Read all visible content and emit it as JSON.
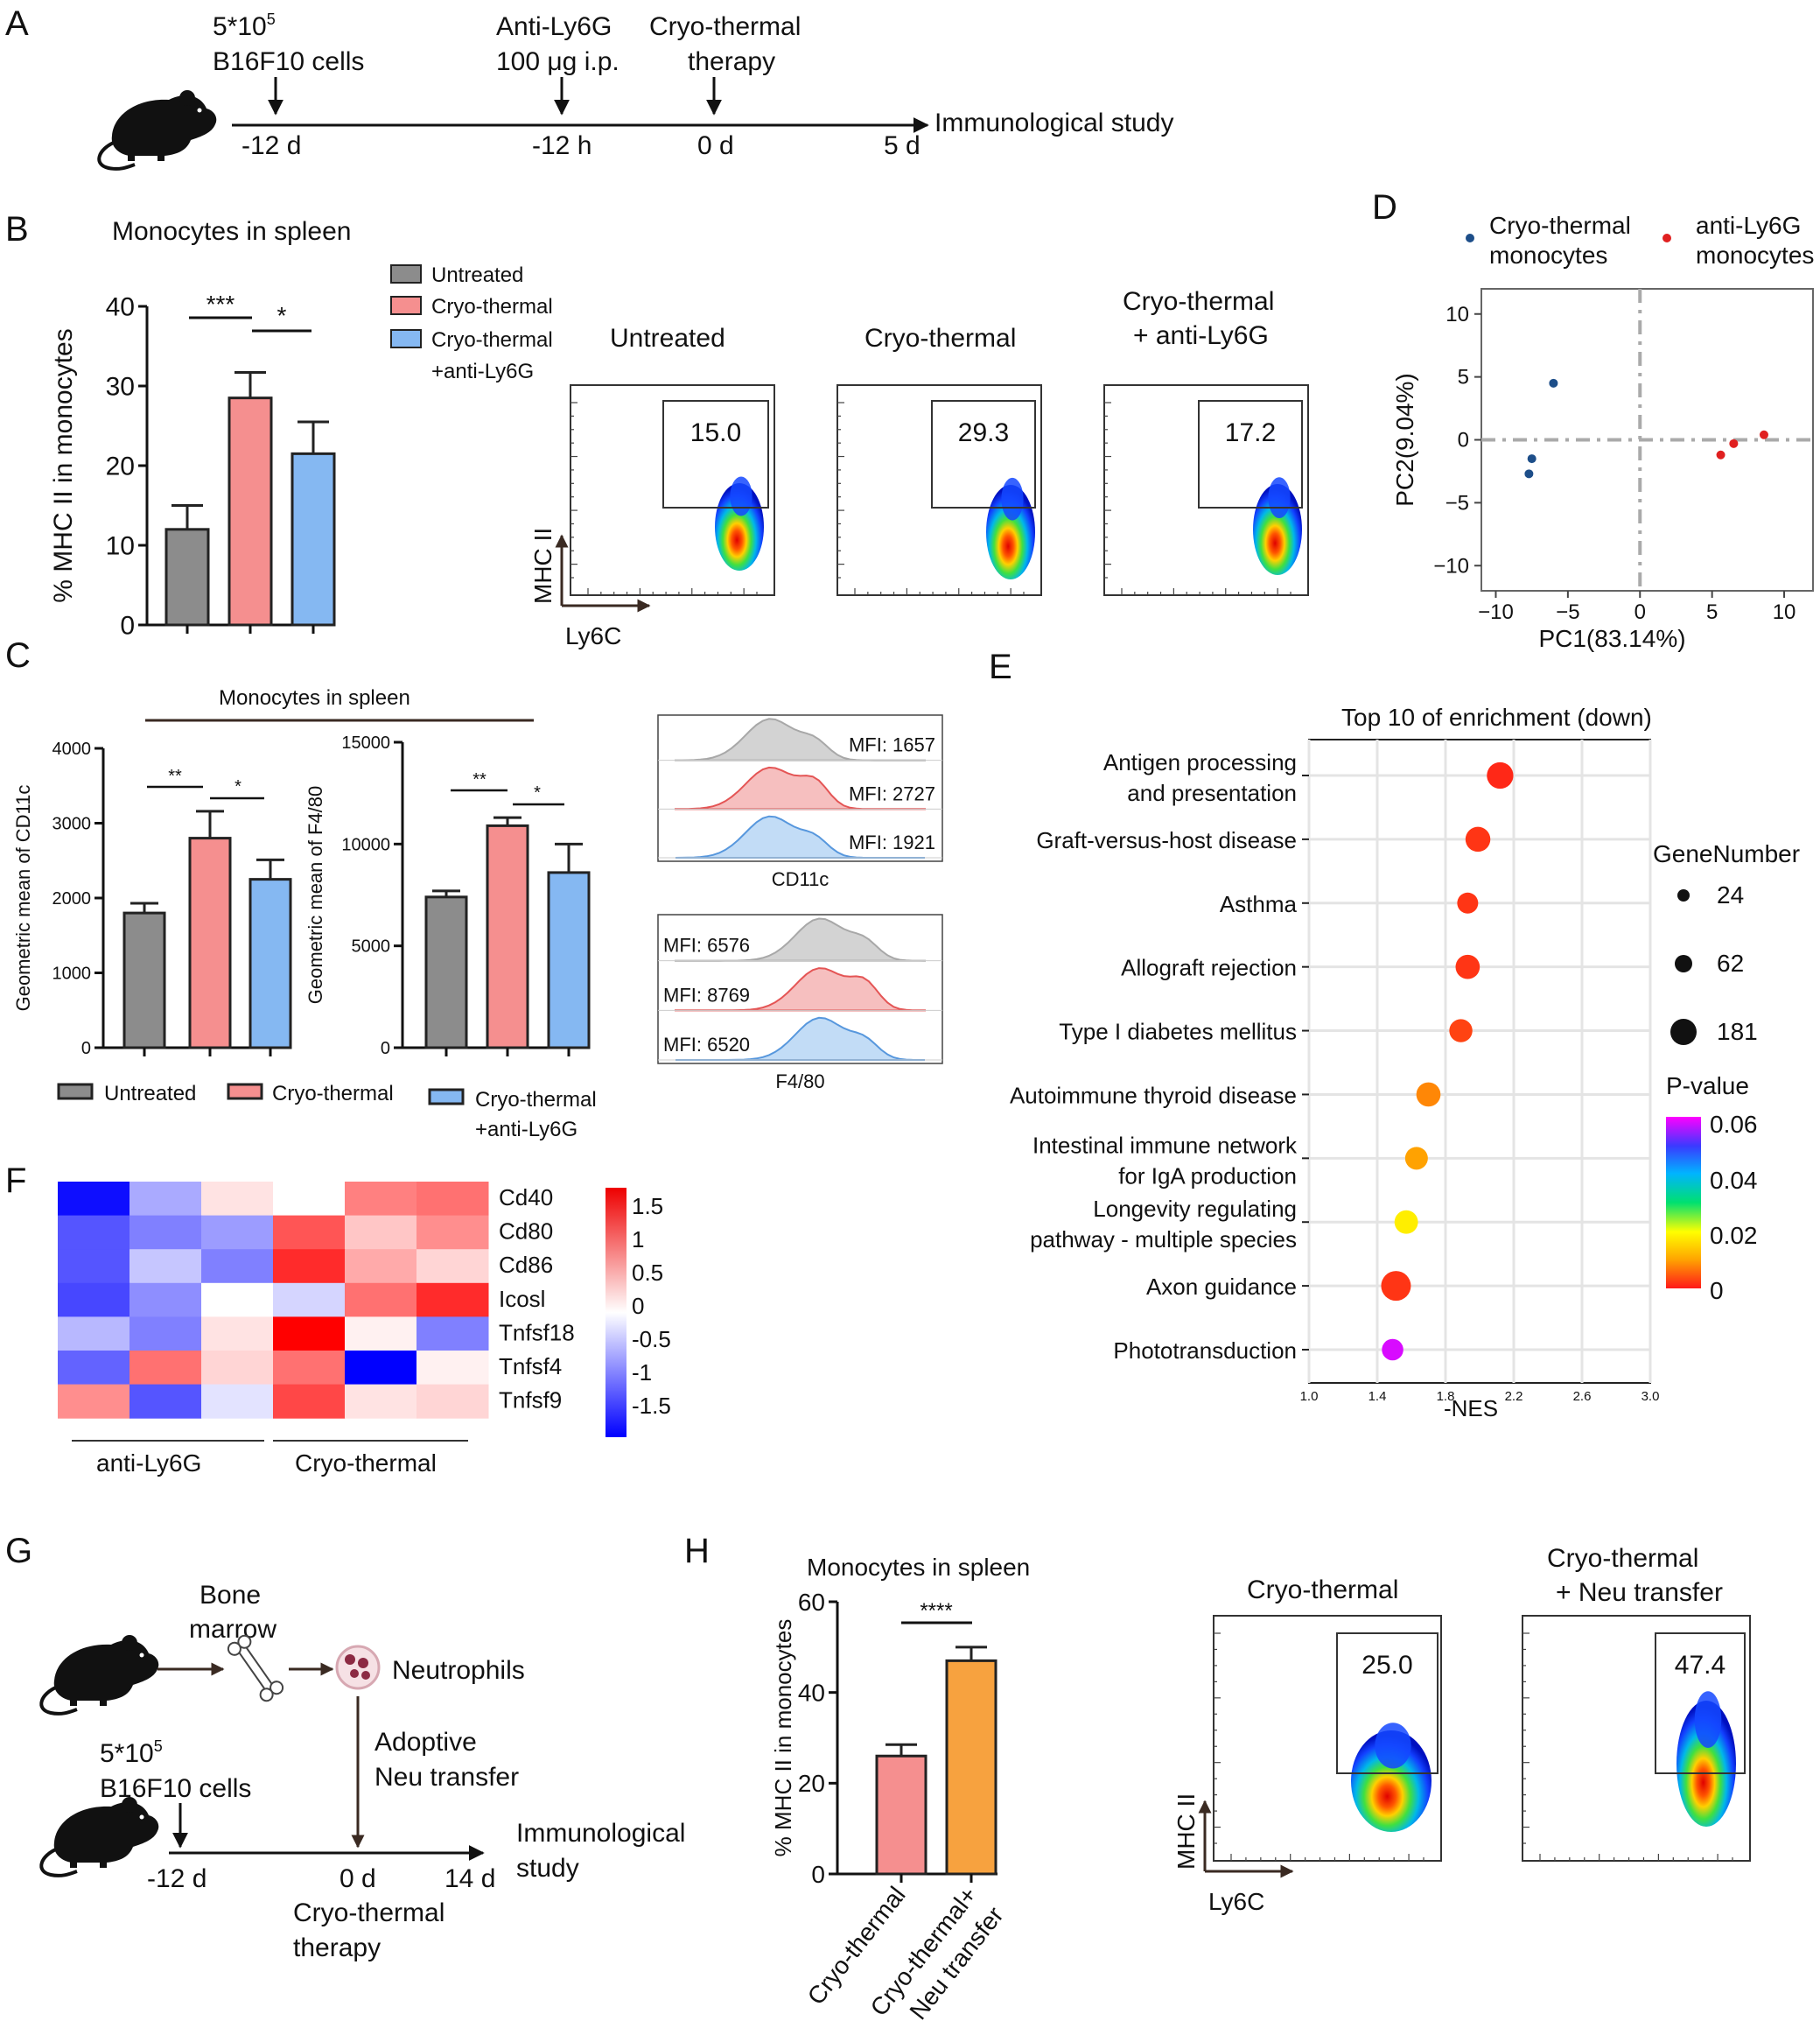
{
  "panels": {
    "A": "A",
    "B": "B",
    "C": "C",
    "D": "D",
    "E": "E",
    "F": "F",
    "G": "G",
    "H": "H"
  },
  "colors": {
    "untreated": "#8c8c8c",
    "cryo": "#f58f8f",
    "cryo_ly6g": "#85b8f2",
    "neu": "#f7a23f",
    "pca_cryo": "#1d4e89",
    "pca_ly6g": "#e02020"
  },
  "panel_a": {
    "cells_line1": "5*10",
    "cells_exp": "5",
    "cells_line2": "B16F10 cells",
    "anti_line1": "Anti-Ly6G",
    "anti_line2": "100 μg  i.p.",
    "therapy_line1": "Cryo-thermal",
    "therapy_line2": "therapy",
    "t1": "-12 d",
    "t2": "-12 h",
    "t3": "0 d",
    "t4": "5 d",
    "end_label": "Immunological study"
  },
  "panel_b": {
    "title": "Monocytes in spleen",
    "ylabel": "% MHC II in monocytes",
    "legend": [
      "Untreated",
      "Cryo-thermal",
      "Cryo-thermal",
      "+anti-Ly6G"
    ],
    "sig1": "***",
    "sig2": "*",
    "flow_titles": [
      "Untreated",
      "Cryo-thermal",
      "Cryo-thermal",
      "+ anti-Ly6G"
    ],
    "flow_values": [
      "15.0",
      "29.3",
      "17.2"
    ],
    "flow_x": "Ly6C",
    "flow_y": "MHC II"
  },
  "panel_c": {
    "title": "Monocytes in spleen",
    "ylabel1": "Geometric mean of CD11c",
    "ylabel2": "Geometric mean of F4/80",
    "sig": [
      "**",
      "*",
      "**",
      "*"
    ],
    "legend": [
      "Untreated",
      "Cryo-thermal",
      "Cryo-thermal",
      "+anti-Ly6G"
    ],
    "hist1_labels": [
      "MFI: 1657",
      "MFI: 2727",
      "MFI: 1921"
    ],
    "hist1_x": "CD11c",
    "hist2_labels": [
      "MFI: 6576",
      "MFI: 8769",
      "MFI: 6520"
    ],
    "hist2_x": "F4/80"
  },
  "panel_d": {
    "legend1": [
      "Cryo-thermal",
      "monocytes"
    ],
    "legend2": [
      "anti-Ly6G",
      "monocytes"
    ],
    "xlabel": "PC1(83.14%)",
    "ylabel": "PC2(9.04%)"
  },
  "panel_e": {
    "title": "Top 10 of enrichment (down)",
    "xlabel": "-NES",
    "size_title": "GeneNumber",
    "size_vals": [
      "24",
      "62",
      "181"
    ],
    "color_title": "P-value",
    "color_ticks": [
      "0.06",
      "0.04",
      "0.02",
      "0"
    ],
    "pathway_lines": [
      [
        "Antigen processing",
        "and presentation"
      ],
      [
        "Graft-versus-host disease"
      ],
      [
        "Asthma"
      ],
      [
        "Allograft rejection"
      ],
      [
        "Type I diabetes mellitus"
      ],
      [
        "Autoimmune thyroid disease"
      ],
      [
        "Intestinal immune network",
        "for IgA production"
      ],
      [
        "Longevity regulating",
        "pathway - multiple species"
      ],
      [
        "Axon guidance"
      ],
      [
        "Phototransduction"
      ]
    ]
  },
  "panel_f": {
    "genes": [
      "Cd40",
      "Cd80",
      "Cd86",
      "Icosl",
      "Tnfsf18",
      "Tnfsf4",
      "Tnfsf9"
    ],
    "groups": [
      "anti-Ly6G",
      "Cryo-thermal"
    ],
    "scale_ticks": [
      "1.5",
      "1",
      "0.5",
      "0",
      "-0.5",
      "-1",
      "-1.5"
    ]
  },
  "panel_g": {
    "bone": [
      "Bone",
      "marrow"
    ],
    "neutrophils": "Neutrophils",
    "transfer": [
      "Adoptive",
      "Neu transfer"
    ],
    "cells_line1": "5*10",
    "cells_exp": "5",
    "cells_line2": "B16F10 cells",
    "t1": "-12 d",
    "t2": "0 d",
    "t3": "14 d",
    "end_label": [
      "Immunological",
      "study"
    ],
    "therapy": [
      "Cryo-thermal",
      "therapy"
    ]
  },
  "panel_h": {
    "title": "Monocytes in spleen",
    "ylabel": "% MHC II in monocytes",
    "sig": "****",
    "xcats": [
      "Cryo-thermal",
      "Cryo-thermal+",
      "Neu transfer"
    ],
    "flow_titles": [
      "Cryo-thermal",
      "Cryo-thermal",
      "+ Neu transfer"
    ],
    "flow_values": [
      "25.0",
      "47.4"
    ],
    "flow_x": "Ly6C",
    "flow_y": "MHC II"
  },
  "chart_data": [
    {
      "id": "B",
      "type": "bar",
      "title": "Monocytes in spleen",
      "ylabel": "% MHC II in monocytes",
      "ylim": [
        0,
        40
      ],
      "yticks": [
        "0",
        "10",
        "20",
        "30",
        "40"
      ],
      "categories": [
        "Untreated",
        "Cryo-thermal",
        "Cryo-thermal +anti-Ly6G"
      ],
      "values": [
        12,
        28.5,
        21.5
      ],
      "errors": [
        3,
        3.2,
        4
      ]
    },
    {
      "id": "C1",
      "type": "bar",
      "ylabel": "Geometric mean of CD11c",
      "ylim": [
        0,
        4000
      ],
      "yticks": [
        "0",
        "1000",
        "2000",
        "3000",
        "4000"
      ],
      "categories": [
        "Untreated",
        "Cryo-thermal",
        "Cryo-thermal +anti-Ly6G"
      ],
      "values": [
        1800,
        2800,
        2250
      ],
      "errors": [
        130,
        360,
        260
      ]
    },
    {
      "id": "C2",
      "type": "bar",
      "ylabel": "Geometric mean of F4/80",
      "ylim": [
        0,
        15000
      ],
      "yticks": [
        "0",
        "5000",
        "10000",
        "15000"
      ],
      "categories": [
        "Untreated",
        "Cryo-thermal",
        "Cryo-thermal +anti-Ly6G"
      ],
      "values": [
        7400,
        10900,
        8600
      ],
      "errors": [
        300,
        400,
        1400
      ]
    },
    {
      "id": "D",
      "type": "scatter",
      "xlabel": "PC1(83.14%)",
      "ylabel": "PC2(9.04%)",
      "xlim": [
        -11,
        12
      ],
      "ylim": [
        -12,
        12
      ],
      "xticks": [
        "−10",
        "−5",
        "0",
        "5",
        "10"
      ],
      "yticks": [
        "10",
        "5",
        "0",
        "−5",
        "−10"
      ],
      "series": [
        {
          "name": "Cryo-thermal monocytes",
          "points": [
            [
              -6,
              4.5
            ],
            [
              -7.5,
              -1.5
            ],
            [
              -7.7,
              -2.7
            ]
          ]
        },
        {
          "name": "anti-Ly6G monocytes",
          "points": [
            [
              5.6,
              -1.2
            ],
            [
              6.5,
              -0.3
            ],
            [
              8.6,
              0.4
            ]
          ]
        }
      ]
    },
    {
      "id": "E",
      "type": "scatter",
      "title": "Top 10 of enrichment (down)",
      "xlabel": "-NES",
      "xlim": [
        1.0,
        3.0
      ],
      "xticks": [
        "1.0",
        "1.4",
        "1.8",
        "2.2",
        "2.6",
        "3.0"
      ],
      "pathways": [
        "Antigen processing and presentation",
        "Graft-versus-host disease",
        "Asthma",
        "Allograft rejection",
        "Type I diabetes mellitus",
        "Autoimmune thyroid disease",
        "Intestinal immune network for IgA production",
        "Longevity regulating pathway - multiple species",
        "Axon guidance",
        "Phototransduction"
      ],
      "nes": [
        2.12,
        1.99,
        1.93,
        1.93,
        1.89,
        1.7,
        1.63,
        1.57,
        1.51,
        1.49
      ],
      "gene_number": [
        120,
        95,
        45,
        85,
        70,
        85,
        65,
        75,
        181,
        50
      ],
      "pvalue": [
        0.001,
        0.002,
        0.002,
        0.002,
        0.003,
        0.008,
        0.01,
        0.018,
        0.002,
        0.058
      ]
    },
    {
      "id": "F",
      "type": "heatmap",
      "rows": [
        "Cd40",
        "Cd80",
        "Cd86",
        "Icosl",
        "Tnfsf18",
        "Tnfsf4",
        "Tnfsf9"
      ],
      "columns": [
        "anti-Ly6G 1",
        "anti-Ly6G 2",
        "anti-Ly6G 3",
        "Cryo-thermal 1",
        "Cryo-thermal 2",
        "Cryo-thermal 3"
      ],
      "values": [
        [
          -1.7,
          -0.6,
          0.2,
          0.0,
          0.9,
          1.0
        ],
        [
          -1.2,
          -0.9,
          -0.7,
          1.2,
          0.4,
          0.8
        ],
        [
          -1.2,
          -0.4,
          -0.9,
          1.5,
          0.6,
          0.3
        ],
        [
          -1.3,
          -0.8,
          0.0,
          -0.3,
          1.0,
          1.5
        ],
        [
          -0.5,
          -0.9,
          0.2,
          1.8,
          0.1,
          -0.9
        ],
        [
          -1.1,
          1.0,
          0.3,
          1.0,
          -1.8,
          0.1
        ],
        [
          0.8,
          -1.2,
          -0.2,
          1.3,
          0.2,
          0.3
        ]
      ]
    },
    {
      "id": "H",
      "type": "bar",
      "title": "Monocytes in spleen",
      "ylabel": "% MHC II in monocytes",
      "ylim": [
        0,
        60
      ],
      "yticks": [
        "0",
        "20",
        "40",
        "60"
      ],
      "categories": [
        "Cryo-thermal",
        "Cryo-thermal+ Neu transfer"
      ],
      "values": [
        26,
        47
      ],
      "errors": [
        2.5,
        3
      ]
    }
  ]
}
